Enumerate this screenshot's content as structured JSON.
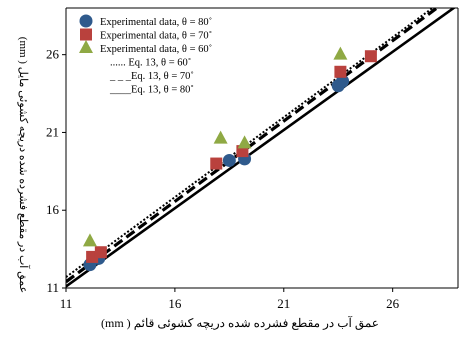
{
  "chart_data": {
    "type": "scatter",
    "xlabel": "(mm ) عمق آب در مقطع فشرده شده دریچه کشوئی قائم",
    "ylabel": "(mm ) عمق آب در مقطع فشرده شده دریچه کشوئی مایل",
    "xlim": [
      11,
      29
    ],
    "ylim": [
      11,
      29
    ],
    "x_ticks": [
      "11",
      "16",
      "21",
      "26"
    ],
    "y_ticks": [
      "11",
      "16",
      "21",
      "26"
    ],
    "grid": "none",
    "legend_position": "top-left",
    "series": [
      {
        "name": "Experimental data, θ = 80˚",
        "marker": "circle",
        "color": "#2F5A8C",
        "points": [
          [
            12.1,
            12.5
          ],
          [
            12.5,
            12.9
          ],
          [
            18.5,
            19.2
          ],
          [
            19.2,
            19.3
          ],
          [
            23.5,
            24.0
          ],
          [
            23.7,
            24.3
          ]
        ]
      },
      {
        "name": "Experimental data, θ = 70˚",
        "marker": "square",
        "color": "#B9413D",
        "points": [
          [
            12.2,
            13.0
          ],
          [
            12.6,
            13.3
          ],
          [
            17.9,
            19.0
          ],
          [
            19.1,
            19.8
          ],
          [
            23.6,
            24.9
          ],
          [
            25.0,
            25.9
          ]
        ]
      },
      {
        "name": "Experimental data, θ = 60˚",
        "marker": "triangle",
        "color": "#8FA944",
        "points": [
          [
            12.1,
            14.0
          ],
          [
            18.1,
            20.6
          ],
          [
            19.2,
            20.3
          ],
          [
            23.6,
            26.0
          ]
        ]
      },
      {
        "name": "...... Eq. 13, θ = 60˚",
        "style": "dotted",
        "color": "#000000",
        "points": [
          [
            11,
            11.7
          ],
          [
            29,
            30.2
          ]
        ]
      },
      {
        "name": "_ _ _Eq. 13, θ = 70˚",
        "style": "dashed",
        "color": "#000000",
        "points": [
          [
            11,
            11.4
          ],
          [
            29,
            30.0
          ]
        ]
      },
      {
        "name": "____Eq. 13, θ = 80˚",
        "style": "solid",
        "color": "#000000",
        "points": [
          [
            11,
            11.1
          ],
          [
            29,
            29.2
          ]
        ]
      }
    ]
  }
}
